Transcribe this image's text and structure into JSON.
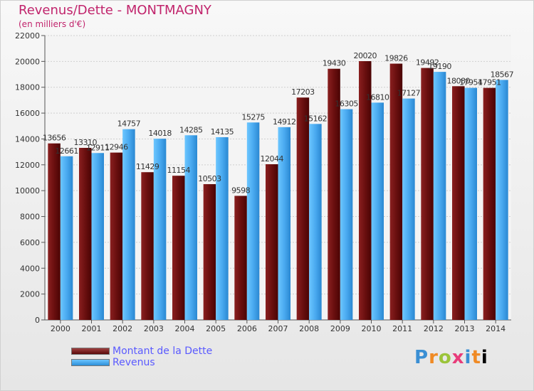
{
  "header": {
    "title": "Revenus/Dette - MONTMAGNY",
    "subtitle": "(en milliers d'€)"
  },
  "legend": {
    "dette_label": "Montant de la Dette",
    "revenus_label": "Revenus"
  },
  "logo_text": "Proxiti",
  "colors": {
    "dette_top": "#9a3434",
    "dette_bottom": "#4a0505",
    "revenus_top": "#6ec8ff",
    "revenus_bottom": "#2a88d2",
    "title": "#c1246c",
    "legend_text": "#5a5aff"
  },
  "chart_data": {
    "type": "bar",
    "title": "Revenus/Dette - MONTMAGNY",
    "ylabel": "(en milliers d'€)",
    "xlabel": "",
    "ylim": [
      0,
      22000
    ],
    "yticks": [
      0,
      2000,
      4000,
      6000,
      8000,
      10000,
      12000,
      14000,
      16000,
      18000,
      20000,
      22000
    ],
    "grid": true,
    "legend_position": "bottom-left",
    "categories": [
      "2000",
      "2001",
      "2002",
      "2003",
      "2004",
      "2005",
      "2006",
      "2007",
      "2008",
      "2009",
      "2010",
      "2011",
      "2012",
      "2013",
      "2014"
    ],
    "series": [
      {
        "name": "Montant de la Dette",
        "values": [
          13656,
          13310,
          12946,
          11429,
          11154,
          10503,
          9598,
          12044,
          17203,
          19430,
          20020,
          19826,
          19492,
          18080,
          17951
        ],
        "labels": [
          "13656",
          "13310",
          "12946",
          "11429",
          "11154",
          "10503",
          "9598",
          "12044",
          "17203",
          "19430",
          "20020",
          "19826",
          "19492",
          "18080",
          "17951"
        ]
      },
      {
        "name": "Revenus",
        "values": [
          12661,
          12911,
          14757,
          14018,
          14285,
          14135,
          15275,
          14912,
          15162,
          16305,
          16810,
          17127,
          19190,
          17954,
          18567
        ],
        "labels": [
          "12661",
          "12911",
          "14757",
          "14018",
          "14285",
          "14135",
          "15275",
          "14912",
          "15162",
          "16305",
          "16810",
          "17127",
          "19190",
          "17954",
          "18567"
        ]
      }
    ]
  }
}
